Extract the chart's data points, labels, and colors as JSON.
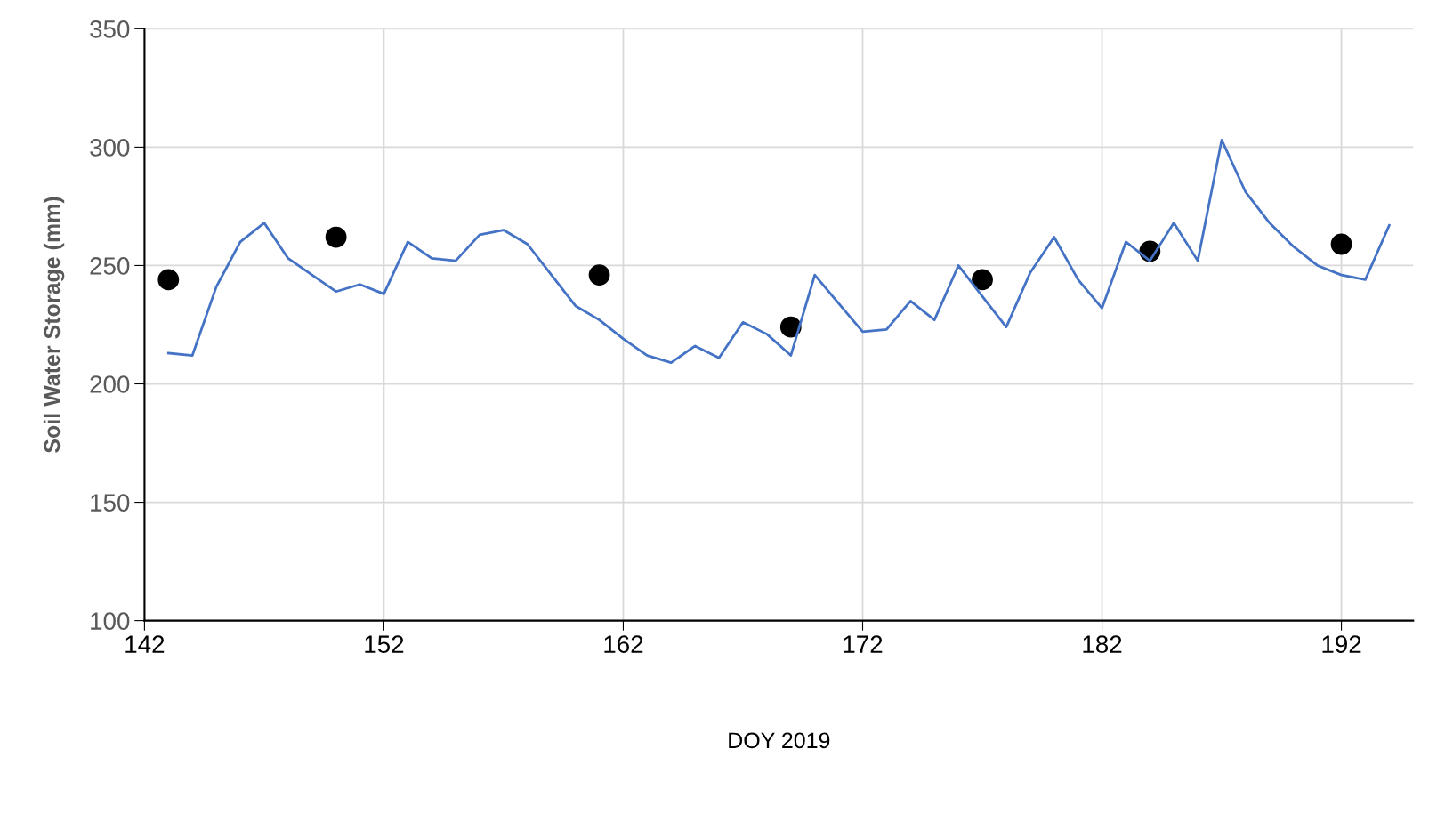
{
  "chart_data": {
    "type": "line",
    "xlabel": "DOY 2019",
    "ylabel": "Soil Water Storage (mm)",
    "xlim": [
      142,
      195
    ],
    "xticks": [
      142,
      152,
      162,
      172,
      182,
      192
    ],
    "ylim": [
      100,
      350
    ],
    "yticks": [
      100,
      150,
      200,
      250,
      300,
      350
    ],
    "grid": true,
    "series": [
      {
        "color": "#4472c4",
        "marker": "none",
        "line_style": "solid",
        "x": [
          143,
          144,
          145,
          146,
          147,
          148,
          149,
          150,
          151,
          152,
          153,
          154,
          155,
          156,
          157,
          158,
          159,
          160,
          161,
          162,
          163,
          164,
          165,
          166,
          167,
          168,
          169,
          170,
          171,
          172,
          173,
          174,
          175,
          176,
          177,
          178,
          179,
          180,
          181,
          182,
          183,
          184,
          185,
          186,
          187,
          188,
          189,
          190,
          191,
          192,
          193,
          194
        ],
        "values": [
          213,
          212,
          241,
          260,
          268,
          253,
          246,
          239,
          242,
          238,
          260,
          253,
          252,
          263,
          265,
          259,
          246,
          233,
          227,
          219,
          212,
          209,
          216,
          211,
          226,
          221,
          212,
          246,
          234,
          222,
          223,
          235,
          227,
          250,
          237,
          224,
          247,
          262,
          244,
          232,
          260,
          252,
          268,
          252,
          303,
          281,
          268,
          258,
          250,
          246,
          244,
          267
        ]
      },
      {
        "type": "scatter",
        "color": "#000000",
        "marker": "circle",
        "x": [
          143,
          150,
          161,
          169,
          177,
          184,
          192
        ],
        "values": [
          244,
          262,
          246,
          224,
          244,
          256,
          259
        ]
      }
    ]
  }
}
